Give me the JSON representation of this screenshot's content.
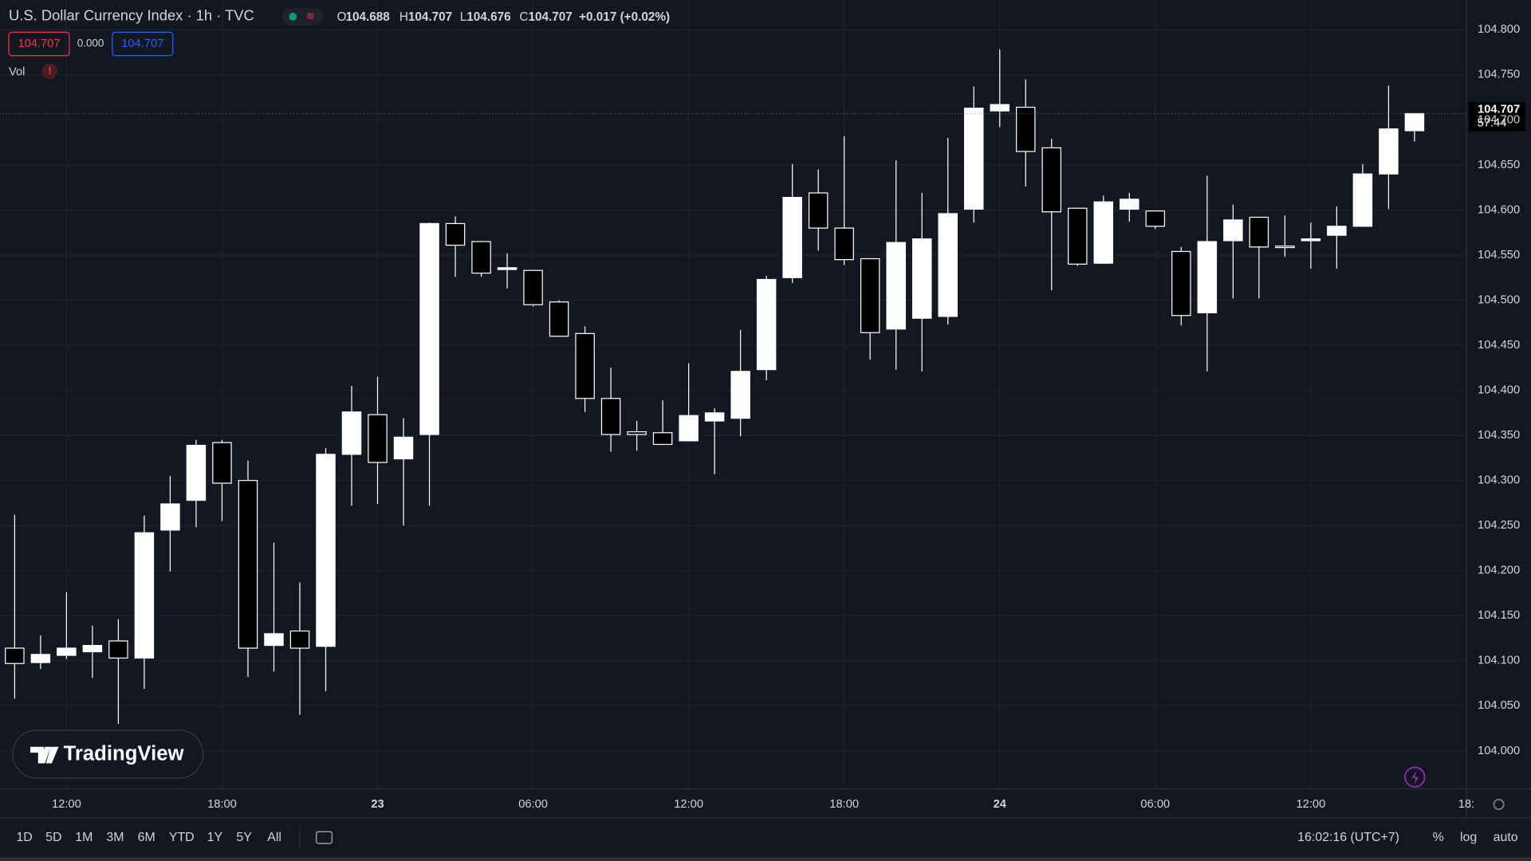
{
  "header": {
    "title": "U.S. Dollar Currency Index · 1h · TVC",
    "ohlc": [
      {
        "label": "O",
        "value": "104.688"
      },
      {
        "label": "H",
        "value": "104.707"
      },
      {
        "label": "L",
        "value": "104.676"
      },
      {
        "label": "C",
        "value": "104.707"
      }
    ],
    "change": "+0.017 (+0.02%)",
    "bid": "104.707",
    "spread": "0.000",
    "ask": "104.707",
    "volume_label": "Vol"
  },
  "logo": "TradingView",
  "price_tag": {
    "price": "104.707",
    "countdown": "57:44"
  },
  "chart_data": {
    "type": "candlestick",
    "open": [
      104.114,
      104.098,
      104.106,
      104.11,
      104.122,
      104.103,
      104.245,
      104.278,
      104.342,
      104.3,
      104.117,
      104.133,
      104.116,
      104.329,
      104.373,
      104.324,
      104.351,
      104.585,
      104.565,
      104.534,
      104.533,
      104.498,
      104.463,
      104.391,
      104.354,
      104.353,
      104.344,
      104.366,
      104.369,
      104.423,
      104.525,
      104.619,
      104.58,
      104.546,
      104.468,
      104.48,
      104.482,
      104.601,
      104.71,
      104.714,
      104.669,
      104.602,
      104.541,
      104.601,
      104.599,
      104.554,
      104.486,
      104.566,
      104.592,
      104.56,
      104.566,
      104.572,
      104.582,
      104.64,
      104.688
    ],
    "high": [
      104.262,
      104.128,
      104.176,
      104.139,
      104.146,
      104.261,
      104.305,
      104.345,
      104.345,
      104.322,
      104.231,
      104.187,
      104.336,
      104.405,
      104.415,
      104.369,
      104.586,
      104.593,
      104.565,
      104.552,
      104.533,
      104.5,
      104.471,
      104.425,
      104.366,
      104.389,
      104.43,
      104.38,
      104.467,
      104.527,
      104.651,
      104.645,
      104.682,
      104.546,
      104.655,
      104.619,
      104.68,
      104.737,
      104.778,
      104.745,
      104.679,
      104.602,
      104.616,
      104.619,
      104.599,
      104.559,
      104.638,
      104.606,
      104.592,
      104.594,
      104.586,
      104.604,
      104.651,
      104.738,
      104.707
    ],
    "low": [
      104.058,
      104.091,
      104.102,
      104.081,
      104.03,
      104.069,
      104.199,
      104.248,
      104.255,
      104.082,
      104.088,
      104.04,
      104.066,
      104.272,
      104.274,
      104.25,
      104.272,
      104.526,
      104.526,
      104.513,
      104.493,
      104.46,
      104.376,
      104.332,
      104.333,
      104.34,
      104.344,
      104.307,
      104.349,
      104.411,
      104.519,
      104.555,
      104.539,
      104.434,
      104.423,
      104.421,
      104.473,
      104.586,
      104.692,
      104.626,
      104.511,
      104.538,
      104.541,
      104.587,
      104.579,
      104.472,
      104.421,
      104.502,
      104.502,
      104.548,
      104.535,
      104.535,
      104.582,
      104.601,
      104.676
    ],
    "close": [
      104.097,
      104.107,
      104.114,
      104.117,
      104.103,
      104.242,
      104.274,
      104.339,
      104.297,
      104.114,
      104.13,
      104.114,
      104.329,
      104.376,
      104.32,
      104.348,
      104.585,
      104.561,
      104.53,
      104.536,
      104.495,
      104.46,
      104.391,
      104.351,
      104.351,
      104.34,
      104.372,
      104.375,
      104.421,
      104.523,
      104.614,
      104.58,
      104.545,
      104.464,
      104.564,
      104.568,
      104.596,
      104.713,
      104.717,
      104.665,
      104.598,
      104.54,
      104.609,
      104.612,
      104.582,
      104.483,
      104.565,
      104.589,
      104.559,
      104.559,
      104.568,
      104.582,
      104.64,
      104.69,
      104.707
    ],
    "up_color": "#ffffff",
    "down_color": "#000000",
    "wick_color": "#ffffff",
    "ylim": [
      103.958,
      104.833
    ],
    "yticks": [
      {
        "value": 104.0,
        "label": "104.000"
      },
      {
        "value": 104.05,
        "label": "104.050"
      },
      {
        "value": 104.1,
        "label": "104.100"
      },
      {
        "value": 104.15,
        "label": "104.150"
      },
      {
        "value": 104.2,
        "label": "104.200"
      },
      {
        "value": 104.25,
        "label": "104.250"
      },
      {
        "value": 104.3,
        "label": "104.300"
      },
      {
        "value": 104.35,
        "label": "104.350"
      },
      {
        "value": 104.4,
        "label": "104.400"
      },
      {
        "value": 104.45,
        "label": "104.450"
      },
      {
        "value": 104.5,
        "label": "104.500"
      },
      {
        "value": 104.55,
        "label": "104.550"
      },
      {
        "value": 104.6,
        "label": "104.600"
      },
      {
        "value": 104.65,
        "label": "104.650"
      },
      {
        "value": 104.7,
        "label": "104.700"
      },
      {
        "value": 104.75,
        "label": "104.750"
      },
      {
        "value": 104.8,
        "label": "104.800"
      }
    ],
    "xticks": [
      {
        "value": 2,
        "label": "12:00"
      },
      {
        "value": 8,
        "label": "18:00"
      },
      {
        "value": 14,
        "label": "23"
      },
      {
        "value": 20,
        "label": "06:00"
      },
      {
        "value": 26,
        "label": "12:00"
      },
      {
        "value": 32,
        "label": "18:00"
      },
      {
        "value": 38,
        "label": "24"
      },
      {
        "value": 44,
        "label": "06:00"
      },
      {
        "value": 50,
        "label": "12:00"
      },
      {
        "value": 56,
        "label": "18:"
      }
    ],
    "grid": true
  },
  "toolbar": {
    "ranges": [
      "1D",
      "5D",
      "1M",
      "3M",
      "6M",
      "YTD",
      "1Y",
      "5Y",
      "All"
    ],
    "clock": "16:02:16 (UTC+7)",
    "options": [
      "%",
      "log",
      "auto"
    ]
  }
}
